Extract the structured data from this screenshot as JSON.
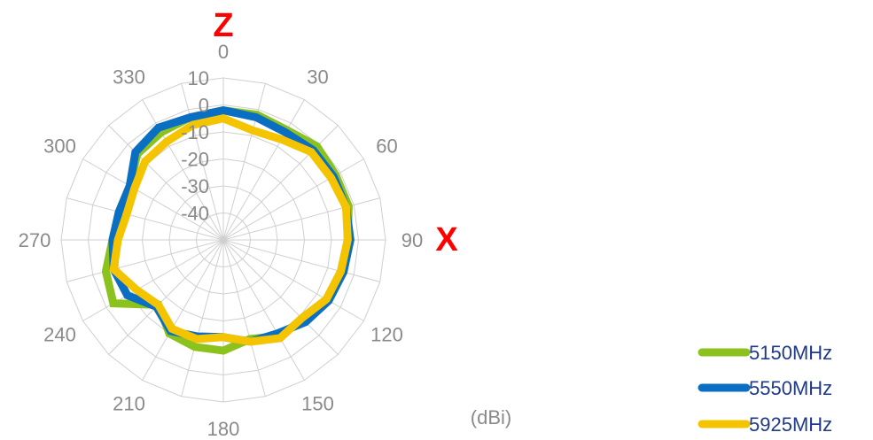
{
  "chart_data": {
    "type": "radar",
    "angle_labels": [
      "0",
      "30",
      "60",
      "90",
      "120",
      "150",
      "180",
      "210",
      "240",
      "270",
      "300",
      "330"
    ],
    "radial_tick_labels": [
      "10",
      "0",
      "-10",
      "-20",
      "-30",
      "-40"
    ],
    "rlim": [
      -50,
      10
    ],
    "grid": true,
    "axis_letters": {
      "top": "Z",
      "right": "X"
    },
    "unit_label": "(dBi)",
    "legend_position": "bottom-right",
    "angles_deg": [
      0,
      15,
      30,
      45,
      60,
      75,
      90,
      105,
      120,
      135,
      150,
      165,
      180,
      195,
      210,
      225,
      240,
      255,
      270,
      285,
      300,
      315,
      330,
      345
    ],
    "series": [
      {
        "name": "5150MHz",
        "color": "#8cc21e",
        "values": [
          -2,
          -2,
          -3,
          -1,
          -2,
          -2,
          -4,
          -5,
          -6,
          -8,
          -9,
          -12,
          -9,
          -9,
          -10,
          -16,
          -3,
          -5,
          -9,
          -10,
          -10,
          -5,
          -4,
          -3
        ]
      },
      {
        "name": "5550MHz",
        "color": "#0a6fc2",
        "values": [
          -2,
          -3,
          -4,
          -3,
          -3,
          -3,
          -3,
          -4,
          -5,
          -7,
          -10,
          -11,
          -14,
          -13,
          -11,
          -15,
          -9,
          -8,
          -9,
          -10,
          -10,
          -4,
          -2,
          -3
        ]
      },
      {
        "name": "5925MHz",
        "color": "#f5c400",
        "values": [
          -5,
          -8,
          -7,
          -4,
          -4,
          -3,
          -4,
          -5,
          -6,
          -9,
          -8,
          -11,
          -14,
          -12,
          -12,
          -16,
          -13,
          -8,
          -11,
          -13,
          -12,
          -9,
          -8,
          -6
        ]
      }
    ]
  }
}
